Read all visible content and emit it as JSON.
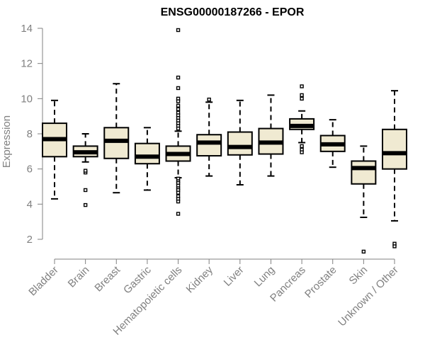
{
  "chart_data": {
    "type": "boxplot",
    "title": "ENSG00000187266 - EPOR",
    "xlabel": "",
    "ylabel": "Expression",
    "ylim": [
      1.0,
      14.2
    ],
    "yticks": [
      2,
      4,
      6,
      8,
      10,
      12,
      14
    ],
    "box_fill": "#f0ead2",
    "line_color": "#000000",
    "axis_color": "#808080",
    "categories": [
      "Bladder",
      "Brain",
      "Breast",
      "Gastric",
      "Hematopoietic cells",
      "Kidney",
      "Liver",
      "Lung",
      "Pancreas",
      "Prostate",
      "Skin",
      "Unknown / Other"
    ],
    "tick_labels": [
      "Bladder",
      "Brain",
      "Breast",
      "Gastric",
      "Hematopoietic cells",
      "Kidney",
      "Liver",
      "Lung",
      "Pancreas",
      "Prostate",
      "Skin",
      "Unknown / Other"
    ],
    "boxes": [
      {
        "name": "Bladder",
        "whisker_low": 4.3,
        "q1": 6.7,
        "median": 7.7,
        "q3": 8.6,
        "whisker_high": 9.9,
        "outliers": []
      },
      {
        "name": "Brain",
        "whisker_low": 6.4,
        "q1": 6.7,
        "median": 6.95,
        "q3": 7.3,
        "whisker_high": 8.0,
        "outliers": [
          5.8,
          5.9,
          4.8,
          3.95
        ]
      },
      {
        "name": "Breast",
        "whisker_low": 4.65,
        "q1": 6.6,
        "median": 7.6,
        "q3": 8.35,
        "whisker_high": 10.85,
        "outliers": []
      },
      {
        "name": "Gastric",
        "whisker_low": 4.8,
        "q1": 6.3,
        "median": 6.7,
        "q3": 7.45,
        "whisker_high": 8.35,
        "outliers": []
      },
      {
        "name": "Hematopoietic cells",
        "whisker_low": 5.5,
        "q1": 6.45,
        "median": 6.85,
        "q3": 7.3,
        "whisker_high": 8.15,
        "outliers": [
          13.9,
          11.2,
          10.6,
          10.0,
          9.85,
          9.6,
          9.4,
          9.2,
          9.05,
          8.9,
          8.75,
          8.6,
          8.45,
          8.3,
          5.45,
          5.3,
          5.2,
          5.05,
          4.9,
          4.8,
          4.65,
          4.45,
          4.3,
          4.15,
          3.45
        ]
      },
      {
        "name": "Kidney",
        "whisker_low": 5.6,
        "q1": 6.75,
        "median": 7.5,
        "q3": 7.95,
        "whisker_high": 9.8,
        "outliers": [
          9.95
        ]
      },
      {
        "name": "Liver",
        "whisker_low": 5.1,
        "q1": 6.8,
        "median": 7.25,
        "q3": 8.1,
        "whisker_high": 9.9,
        "outliers": []
      },
      {
        "name": "Lung",
        "whisker_low": 5.6,
        "q1": 6.85,
        "median": 7.5,
        "q3": 8.3,
        "whisker_high": 10.2,
        "outliers": []
      },
      {
        "name": "Pancreas",
        "whisker_low": 7.5,
        "q1": 8.25,
        "median": 8.45,
        "q3": 8.85,
        "whisker_high": 9.3,
        "outliers": [
          10.7,
          10.2,
          10.0,
          7.3,
          7.1,
          6.95
        ]
      },
      {
        "name": "Prostate",
        "whisker_low": 6.1,
        "q1": 7.0,
        "median": 7.4,
        "q3": 7.9,
        "whisker_high": 8.8,
        "outliers": []
      },
      {
        "name": "Skin",
        "whisker_low": 3.25,
        "q1": 5.15,
        "median": 6.05,
        "q3": 6.45,
        "whisker_high": 7.3,
        "outliers": [
          1.3
        ]
      },
      {
        "name": "Unknown / Other",
        "whisker_low": 3.05,
        "q1": 6.0,
        "median": 6.9,
        "q3": 8.25,
        "whisker_high": 10.45,
        "outliers": [
          1.75,
          1.6
        ]
      }
    ]
  }
}
